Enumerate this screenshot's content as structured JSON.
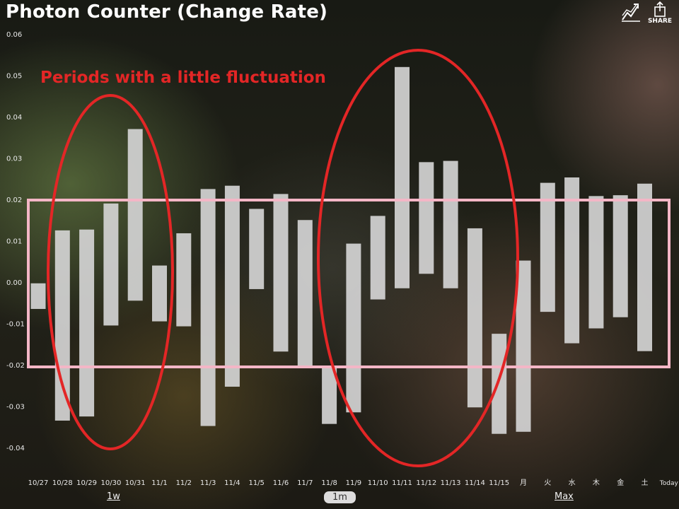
{
  "header": {
    "title": "Photon Counter (Change Rate)",
    "chart_icon": "chart-line-icon",
    "share_icon": "share-icon",
    "share_label": "SHARE"
  },
  "annotation": {
    "text": "Periods with a little fluctuation",
    "text_color": "#e32626",
    "ellipse_color": "#e32626",
    "box_color": "#f4b6c6"
  },
  "periods": [
    {
      "label": "1w",
      "selected": false
    },
    {
      "label": "1m",
      "selected": true
    },
    {
      "label": "Max",
      "selected": false
    }
  ],
  "chart_data": {
    "type": "bar",
    "subtype": "floating-range",
    "ylim": [
      -0.04,
      0.06
    ],
    "yticks": [
      "0.06",
      "0.05",
      "0.04",
      "0.03",
      "0.02",
      "0.01",
      "0.00",
      "-0.01",
      "-0.02",
      "-0.03",
      "-0.04"
    ],
    "categories": [
      "10/27",
      "10/28",
      "10/29",
      "10/30",
      "10/31",
      "11/1",
      "11/2",
      "11/3",
      "11/4",
      "11/5",
      "11/6",
      "11/7",
      "11/8",
      "11/9",
      "11/10",
      "11/11",
      "11/12",
      "11/13",
      "11/14",
      "11/15",
      "月",
      "火",
      "水",
      "木",
      "金",
      "土",
      "Today"
    ],
    "ranges": [
      [
        -0.0065,
        -0.0003
      ],
      [
        -0.0335,
        0.0125
      ],
      [
        -0.0325,
        0.0127
      ],
      [
        -0.0105,
        0.019
      ],
      [
        -0.0045,
        0.037
      ],
      [
        -0.0095,
        0.004
      ],
      [
        -0.0107,
        0.0118
      ],
      [
        -0.0348,
        0.0225
      ],
      [
        -0.0253,
        0.0233
      ],
      [
        -0.0017,
        0.0177
      ],
      [
        -0.0168,
        0.0213
      ],
      [
        -0.0203,
        0.015
      ],
      [
        -0.0343,
        -0.0203
      ],
      [
        -0.0315,
        0.0093
      ],
      [
        -0.0042,
        0.016
      ],
      [
        -0.0015,
        0.052
      ],
      [
        0.002,
        0.029
      ],
      [
        -0.0015,
        0.0293
      ],
      [
        -0.0303,
        0.013
      ],
      [
        -0.0367,
        -0.0125
      ],
      [
        -0.0362,
        0.0052
      ],
      [
        -0.0072,
        0.024
      ],
      [
        -0.0148,
        0.0253
      ],
      [
        -0.0112,
        0.0208
      ],
      [
        -0.0085,
        0.021
      ],
      [
        -0.0167,
        0.0238
      ],
      null
    ],
    "bar_color": "#d4d4d4",
    "grid": false
  }
}
